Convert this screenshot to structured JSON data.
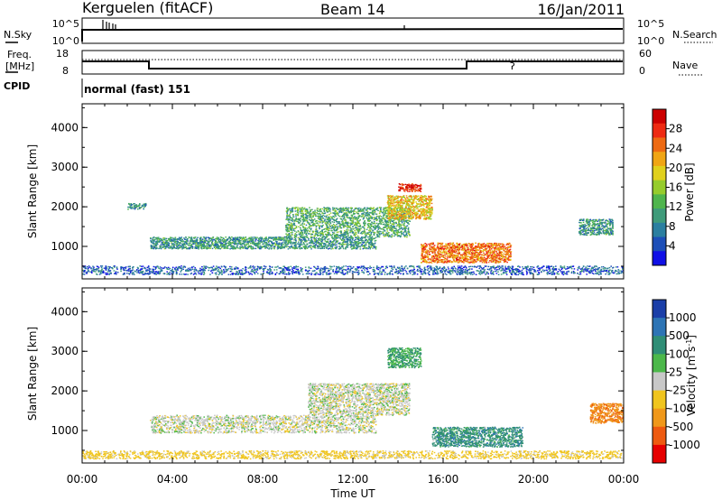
{
  "header": {
    "radar": "Kerguelen (fitACF)",
    "beam": "Beam 14",
    "date": "16/Jan/2011"
  },
  "nsky_panel": {
    "left_label": "N.Sky",
    "right_label": "N.Search",
    "left_ticks": [
      "10^5",
      "10^0"
    ],
    "right_ticks": [
      "10^5",
      "10^0"
    ]
  },
  "freq_panel": {
    "label_line1": "Freq.",
    "label_line2": "[MHz]",
    "left_ticks": [
      "18",
      "8"
    ],
    "right_label": "Nave",
    "right_ticks": [
      "60",
      "0"
    ]
  },
  "cpid_panel": {
    "label": "CPID",
    "value": "normal (fast) 151"
  },
  "time_axis": {
    "label": "Time UT",
    "ticks": [
      "00:00",
      "04:00",
      "08:00",
      "12:00",
      "16:00",
      "20:00",
      "00:00"
    ]
  },
  "chart_data": [
    {
      "type": "heatmap",
      "quantity": "Power",
      "ylabel": "Slant Range [km]",
      "yticks": [
        "1000",
        "2000",
        "3000",
        "4000"
      ],
      "colorbar": {
        "label": "Power [dB]",
        "ticks": [
          "4",
          "8",
          "12",
          "16",
          "20",
          "24",
          "28"
        ],
        "colors": [
          "#1010e6",
          "#1d4fb8",
          "#2b7fa0",
          "#3f9b7a",
          "#4fb54d",
          "#96cc2c",
          "#e0d01c",
          "#f0a514",
          "#ee6a12",
          "#ee2a12",
          "#cc0000"
        ]
      },
      "echo_regions": [
        {
          "time_h": [
            0.0,
            24.0
          ],
          "range_km": [
            300,
            520
          ],
          "power_db": 6
        },
        {
          "time_h": [
            3.0,
            13.0
          ],
          "range_km": [
            950,
            1250
          ],
          "power_db": 10
        },
        {
          "time_h": [
            9.0,
            14.5
          ],
          "range_km": [
            1250,
            2000
          ],
          "power_db": 12
        },
        {
          "time_h": [
            13.5,
            15.5
          ],
          "range_km": [
            1700,
            2300
          ],
          "power_db": 20
        },
        {
          "time_h": [
            14.0,
            15.0
          ],
          "range_km": [
            2400,
            2600
          ],
          "power_db": 28
        },
        {
          "time_h": [
            15.0,
            19.0
          ],
          "range_km": [
            600,
            1100
          ],
          "power_db": 24
        },
        {
          "time_h": [
            2.0,
            2.8
          ],
          "range_km": [
            1950,
            2100
          ],
          "power_db": 10
        },
        {
          "time_h": [
            22.0,
            23.5
          ],
          "range_km": [
            1300,
            1700
          ],
          "power_db": 10
        }
      ]
    },
    {
      "type": "heatmap",
      "quantity": "Velocity",
      "ylabel": "Slant Range [km]",
      "yticks": [
        "1000",
        "2000",
        "3000",
        "4000"
      ],
      "colorbar": {
        "label": "Velocity [m s^-1]",
        "ticks": [
          "1000",
          "500",
          "100",
          "25",
          "-25",
          "-100",
          "-500",
          "-1000"
        ],
        "colors": [
          "#1a3ea8",
          "#2d74b5",
          "#2f8e76",
          "#4cb84a",
          "#c8c8c8",
          "#f0c51e",
          "#f0981a",
          "#ee5a10",
          "#e60000"
        ]
      },
      "echo_regions": [
        {
          "time_h": [
            3.0,
            13.0
          ],
          "range_km": [
            950,
            1400
          ],
          "velocity_ms": 0
        },
        {
          "time_h": [
            10.0,
            14.5
          ],
          "range_km": [
            1400,
            2200
          ],
          "velocity_ms": 0
        },
        {
          "time_h": [
            13.5,
            15.0
          ],
          "range_km": [
            2600,
            3100
          ],
          "velocity_ms": 100
        },
        {
          "time_h": [
            15.5,
            19.5
          ],
          "range_km": [
            600,
            1100
          ],
          "velocity_ms": 300
        },
        {
          "time_h": [
            0.0,
            24.0
          ],
          "range_km": [
            300,
            500
          ],
          "velocity_ms": -50
        },
        {
          "time_h": [
            22.5,
            24.0
          ],
          "range_km": [
            1200,
            1700
          ],
          "velocity_ms": -400
        }
      ]
    }
  ]
}
